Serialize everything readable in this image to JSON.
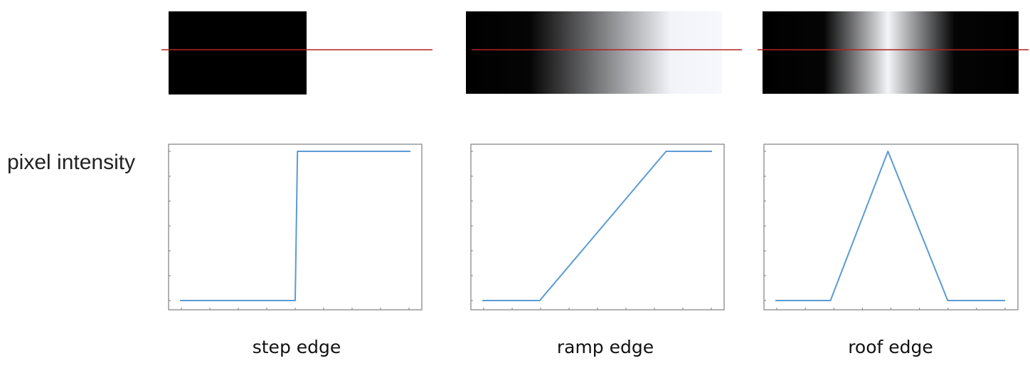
{
  "y_axis_label": "pixel intensity",
  "colors": {
    "scanline": "#b22222",
    "profile": "#5a9bd3",
    "axes": "#7f7f7f",
    "dark": "#000000",
    "light": "#f7f8fc"
  },
  "edges": [
    {
      "id": "step",
      "caption": "step edge",
      "profile": [
        [
          0,
          0
        ],
        [
          0.5,
          0
        ],
        [
          0.51,
          1
        ],
        [
          1,
          1
        ]
      ]
    },
    {
      "id": "ramp",
      "caption": "ramp edge",
      "profile": [
        [
          0,
          0
        ],
        [
          0.25,
          0
        ],
        [
          0.8,
          1
        ],
        [
          1,
          1
        ]
      ]
    },
    {
      "id": "roof",
      "caption": "roof edge",
      "profile": [
        [
          0,
          0
        ],
        [
          0.24,
          0
        ],
        [
          0.49,
          1
        ],
        [
          0.75,
          0
        ],
        [
          1,
          0
        ]
      ]
    }
  ]
}
